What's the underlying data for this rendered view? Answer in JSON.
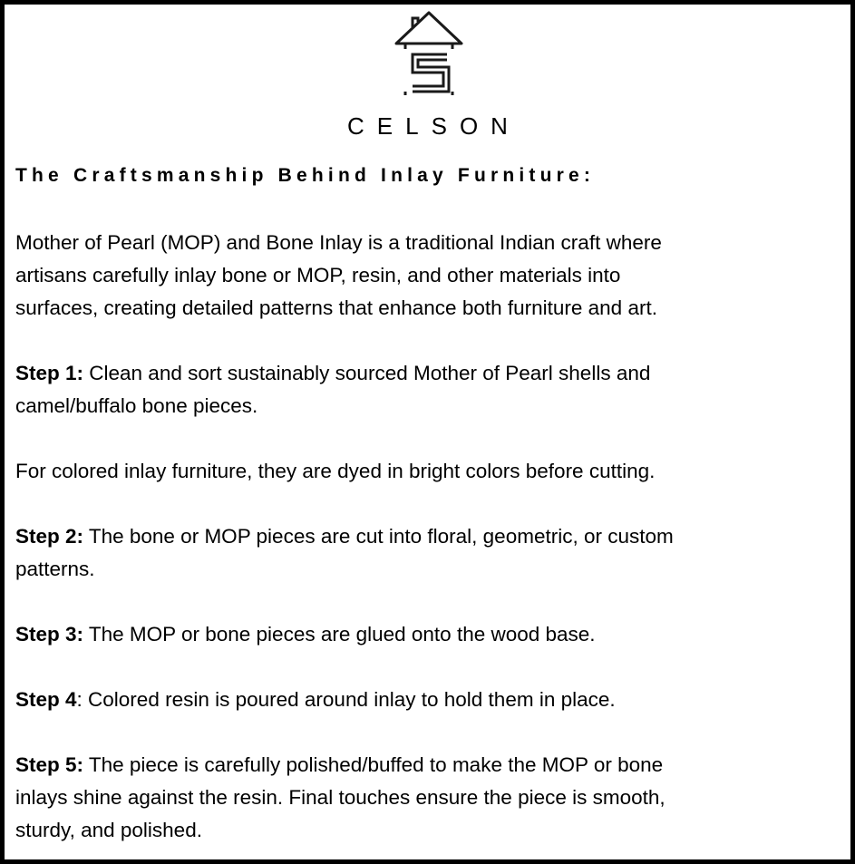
{
  "brand": {
    "name": "CELSON",
    "logo_icon": "house-c-logo-icon"
  },
  "heading": "The Craftsmanship Behind Inlay Furniture:",
  "intro": [
    "Mother of Pearl (MOP) and Bone Inlay is a traditional Indian craft where",
    "artisans carefully inlay bone or MOP, resin, and other materials into",
    "surfaces, creating detailed patterns that enhance both furniture and art."
  ],
  "step1": {
    "label": "Step 1:",
    "lines": [
      " Clean and sort sustainably sourced Mother of Pearl shells and",
      "camel/buffalo bone pieces."
    ]
  },
  "note": "For colored inlay furniture, they are dyed in bright colors before cutting.",
  "step2": {
    "label": "Step 2:",
    "lines": [
      " The bone or MOP pieces are cut into floral, geometric, or custom",
      "patterns."
    ]
  },
  "step3": {
    "label": "Step 3:",
    "lines": [
      " The MOP or bone pieces are glued onto the wood base."
    ]
  },
  "step4": {
    "label": "Step 4",
    "lines": [
      ": Colored resin is poured around inlay to hold them in place."
    ]
  },
  "step5": {
    "label": "Step 5:",
    "lines": [
      " The piece is carefully polished/buffed to make the MOP or bone",
      "inlays shine against the resin. Final touches ensure the piece is smooth,",
      "sturdy, and polished."
    ]
  }
}
